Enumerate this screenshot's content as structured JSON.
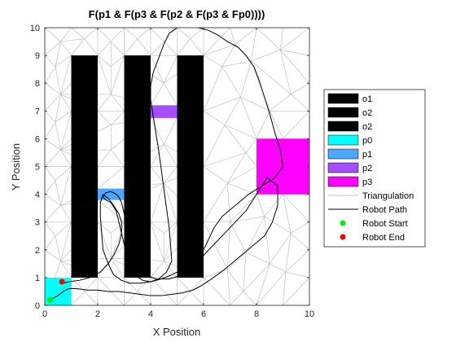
{
  "chart_data": {
    "type": "line",
    "title": "F(p1 & F(p3 & F(p2 & F(p3 & Fp0))))",
    "xlabel": "X Position",
    "ylabel": "Y Position",
    "xlim": [
      0,
      10
    ],
    "ylim": [
      0,
      10
    ],
    "xticks": [
      "0",
      "2",
      "4",
      "6",
      "8",
      "10"
    ],
    "yticks": [
      "0",
      "1",
      "2",
      "3",
      "4",
      "5",
      "6",
      "7",
      "8",
      "9",
      "10"
    ],
    "grid": false,
    "legend_position": "right",
    "regions": [
      {
        "name": "o1",
        "color": "#000000",
        "x": [
          1,
          2
        ],
        "y": [
          1,
          9
        ]
      },
      {
        "name": "o2",
        "color": "#000000",
        "x": [
          3,
          4
        ],
        "y": [
          1,
          9
        ]
      },
      {
        "name": "o2",
        "color": "#000000",
        "x": [
          5,
          6
        ],
        "y": [
          1,
          9
        ]
      },
      {
        "name": "p0",
        "color": "#00ffff",
        "x": [
          0,
          1
        ],
        "y": [
          0,
          1
        ]
      },
      {
        "name": "p1",
        "color": "#4da6ff",
        "x": [
          2,
          3
        ],
        "y": [
          3.8,
          4.2
        ]
      },
      {
        "name": "p2",
        "color": "#a64dff",
        "x": [
          4,
          5
        ],
        "y": [
          6.75,
          7.2
        ]
      },
      {
        "name": "p3",
        "color": "#ff00ff",
        "x": [
          8,
          10
        ],
        "y": [
          4,
          6
        ]
      }
    ],
    "triangulation": {
      "name": "Triangulation",
      "color": "#c0c0c0",
      "points": [
        [
          0,
          0
        ],
        [
          1,
          0
        ],
        [
          2,
          0
        ],
        [
          3,
          0
        ],
        [
          4,
          0
        ],
        [
          5,
          0
        ],
        [
          6,
          0
        ],
        [
          7,
          0
        ],
        [
          8,
          0
        ],
        [
          9,
          0
        ],
        [
          10,
          0
        ],
        [
          0,
          10
        ],
        [
          1,
          10
        ],
        [
          2,
          10
        ],
        [
          3,
          10
        ],
        [
          4,
          10
        ],
        [
          5,
          10
        ],
        [
          6,
          10
        ],
        [
          7,
          10
        ],
        [
          8,
          10
        ],
        [
          9,
          10
        ],
        [
          10,
          10
        ],
        [
          0,
          2
        ],
        [
          0,
          3
        ],
        [
          0,
          4
        ],
        [
          0,
          5
        ],
        [
          0,
          6
        ],
        [
          0,
          7
        ],
        [
          0,
          8
        ],
        [
          0,
          9
        ],
        [
          10,
          1
        ],
        [
          10,
          2
        ],
        [
          10,
          3
        ],
        [
          10,
          4
        ],
        [
          10,
          5
        ],
        [
          10,
          6
        ],
        [
          10,
          7
        ],
        [
          10,
          8
        ],
        [
          10,
          9
        ],
        [
          1,
          1
        ],
        [
          2,
          1
        ],
        [
          3,
          1
        ],
        [
          4,
          1
        ],
        [
          5,
          1
        ],
        [
          6,
          1
        ],
        [
          1,
          9
        ],
        [
          2,
          9
        ],
        [
          3,
          9
        ],
        [
          4,
          9
        ],
        [
          5,
          9
        ],
        [
          6,
          9
        ],
        [
          1,
          3
        ],
        [
          1,
          5
        ],
        [
          1,
          7
        ],
        [
          2,
          3
        ],
        [
          2,
          5
        ],
        [
          2,
          7
        ],
        [
          3,
          3
        ],
        [
          3,
          5
        ],
        [
          3,
          7
        ],
        [
          4,
          3
        ],
        [
          4,
          5
        ],
        [
          5,
          3
        ],
        [
          5,
          5
        ],
        [
          6,
          3
        ],
        [
          6,
          5
        ],
        [
          6,
          7
        ],
        [
          4,
          6.75
        ],
        [
          5,
          6.75
        ],
        [
          4,
          7.2
        ],
        [
          5,
          7.2
        ],
        [
          2,
          3.8
        ],
        [
          3,
          3.8
        ],
        [
          2,
          4.2
        ],
        [
          3,
          4.2
        ],
        [
          8,
          4
        ],
        [
          9,
          4
        ],
        [
          8,
          5
        ],
        [
          8,
          6
        ],
        [
          9,
          6
        ],
        [
          6.9,
          1.3
        ],
        [
          7.6,
          1.9
        ],
        [
          8.5,
          1.5
        ],
        [
          9.3,
          2.6
        ],
        [
          7,
          3
        ],
        [
          8.3,
          3.2
        ],
        [
          6.9,
          4.4
        ],
        [
          7.6,
          5.5
        ],
        [
          6.8,
          6.5
        ],
        [
          7.4,
          7.5
        ],
        [
          8.5,
          7
        ],
        [
          9.3,
          7.6
        ],
        [
          6.7,
          8.6
        ],
        [
          7.8,
          8.8
        ],
        [
          8.9,
          9.2
        ],
        [
          7.2,
          9.4
        ],
        [
          9.5,
          4.8
        ],
        [
          9.1,
          1.2
        ],
        [
          0.6,
          1.6
        ],
        [
          0.4,
          2.5
        ],
        [
          0.6,
          3.6
        ],
        [
          0.4,
          4.5
        ],
        [
          0.6,
          5.6
        ],
        [
          0.4,
          6.6
        ],
        [
          0.6,
          7.6
        ],
        [
          0.4,
          8.6
        ],
        [
          0.6,
          9.5
        ],
        [
          2.5,
          1.7
        ],
        [
          2.5,
          2.6
        ],
        [
          2.5,
          5.6
        ],
        [
          2.5,
          6.5
        ],
        [
          2.5,
          7.6
        ],
        [
          2.5,
          8.6
        ],
        [
          2.5,
          9.5
        ],
        [
          4.5,
          1.6
        ],
        [
          4.5,
          2.6
        ],
        [
          4.5,
          4.4
        ],
        [
          4.5,
          5.8
        ],
        [
          4.5,
          8
        ],
        [
          4.5,
          9.5
        ],
        [
          1.5,
          0.5
        ],
        [
          3.5,
          0.5
        ],
        [
          5.5,
          0.5
        ],
        [
          7.5,
          0.5
        ],
        [
          1.5,
          9.6
        ],
        [
          3.5,
          9.6
        ],
        [
          5.5,
          9.6
        ]
      ]
    },
    "series": [
      {
        "name": "Robot Path",
        "color": "#000000",
        "x": [
          0.2,
          0.5,
          0.7,
          0.9,
          1.2,
          1.6,
          2.0,
          2.4,
          2.8,
          3.2,
          3.6,
          4.0,
          4.4,
          4.8,
          5.2,
          5.6,
          5.9,
          6.3,
          6.8,
          7.3,
          7.8,
          8.3,
          8.6,
          8.8,
          8.8,
          8.4,
          8.0,
          7.6,
          7.2,
          6.8,
          6.4,
          6.0,
          5.6,
          5.2,
          4.7,
          4.2,
          3.8,
          3.5,
          3.3,
          3.2,
          3.1,
          3.0,
          2.9,
          2.8,
          2.7,
          2.5,
          2.3,
          2.2,
          2.3,
          2.5,
          2.7,
          2.8,
          2.9,
          3.0,
          3.1,
          3.2,
          3.4,
          3.7,
          4.0,
          4.3,
          4.6,
          4.8,
          4.75,
          4.7,
          4.6,
          4.5,
          4.4,
          4.3,
          4.2,
          4.1,
          4.0,
          4.0,
          4.1,
          4.3,
          4.5,
          4.7,
          5.0,
          5.4,
          5.8,
          6.2,
          6.6,
          6.9,
          7.3,
          7.6,
          7.9,
          8.1,
          8.3,
          8.5,
          8.7,
          8.9,
          9.0,
          8.7,
          8.2,
          7.7,
          7.2,
          6.7,
          6.4,
          6.2,
          6.0,
          5.6,
          5.2,
          4.8,
          4.4,
          4.0,
          3.6,
          3.2,
          2.9,
          2.6,
          2.4,
          2.2,
          2.15,
          2.1,
          2.1,
          2.2,
          2.4,
          2.6,
          2.8,
          2.9,
          2.9,
          2.8,
          2.6,
          2.4,
          2.1,
          1.7,
          1.3,
          0.9,
          0.7
        ],
        "y": [
          0.2,
          0.35,
          0.5,
          0.6,
          0.6,
          0.55,
          0.55,
          0.5,
          0.5,
          0.45,
          0.4,
          0.35,
          0.35,
          0.4,
          0.45,
          0.55,
          0.7,
          0.95,
          1.3,
          1.7,
          2.1,
          2.5,
          3.0,
          3.6,
          4.3,
          4.6,
          4.0,
          3.4,
          3.0,
          2.6,
          2.2,
          1.8,
          1.4,
          1.1,
          0.95,
          0.95,
          1.1,
          1.4,
          1.8,
          2.3,
          2.8,
          3.3,
          3.7,
          3.9,
          4.0,
          4.1,
          4.05,
          3.9,
          3.8,
          3.7,
          3.4,
          3.0,
          2.6,
          2.2,
          1.8,
          1.4,
          1.1,
          0.9,
          0.85,
          0.95,
          1.2,
          1.6,
          2.2,
          2.8,
          3.5,
          4.2,
          4.9,
          5.6,
          6.2,
          6.8,
          7.4,
          7.9,
          8.4,
          8.9,
          9.4,
          9.8,
          10.0,
          10.05,
          10.0,
          9.9,
          9.7,
          9.5,
          9.3,
          9.0,
          8.6,
          8.1,
          7.5,
          6.9,
          6.2,
          5.6,
          5.0,
          4.6,
          4.3,
          4.0,
          3.6,
          3.2,
          2.8,
          2.4,
          2.0,
          1.6,
          1.3,
          1.1,
          0.95,
          0.85,
          0.8,
          0.8,
          0.9,
          1.1,
          1.5,
          2.0,
          2.6,
          3.2,
          3.7,
          4.0,
          3.85,
          3.6,
          3.3,
          3.0,
          2.6,
          2.2,
          1.8,
          1.5,
          1.2,
          1.0,
          0.9,
          0.85,
          0.8
        ]
      }
    ],
    "markers": [
      {
        "name": "Robot Start",
        "color": "#00ee00",
        "x": 0.2,
        "y": 0.2
      },
      {
        "name": "Robot End",
        "color": "#ff0000",
        "x": 0.65,
        "y": 0.85
      }
    ],
    "legend": [
      {
        "label": "o1",
        "kind": "patch",
        "color": "#000000"
      },
      {
        "label": "o2",
        "kind": "patch",
        "color": "#000000"
      },
      {
        "label": "o2",
        "kind": "patch",
        "color": "#000000"
      },
      {
        "label": "p0",
        "kind": "patch",
        "color": "#00ffff"
      },
      {
        "label": "p1",
        "kind": "patch",
        "color": "#4da6ff"
      },
      {
        "label": "p2",
        "kind": "patch",
        "color": "#a64dff"
      },
      {
        "label": "p3",
        "kind": "patch",
        "color": "#ff00ff"
      },
      {
        "label": "Triangulation",
        "kind": "line",
        "color": "#c0c0c0"
      },
      {
        "label": "Robot Path",
        "kind": "line",
        "color": "#000000"
      },
      {
        "label": "Robot Start",
        "kind": "dot",
        "color": "#00ee00"
      },
      {
        "label": "Robot End",
        "kind": "dot",
        "color": "#ff0000"
      }
    ]
  }
}
